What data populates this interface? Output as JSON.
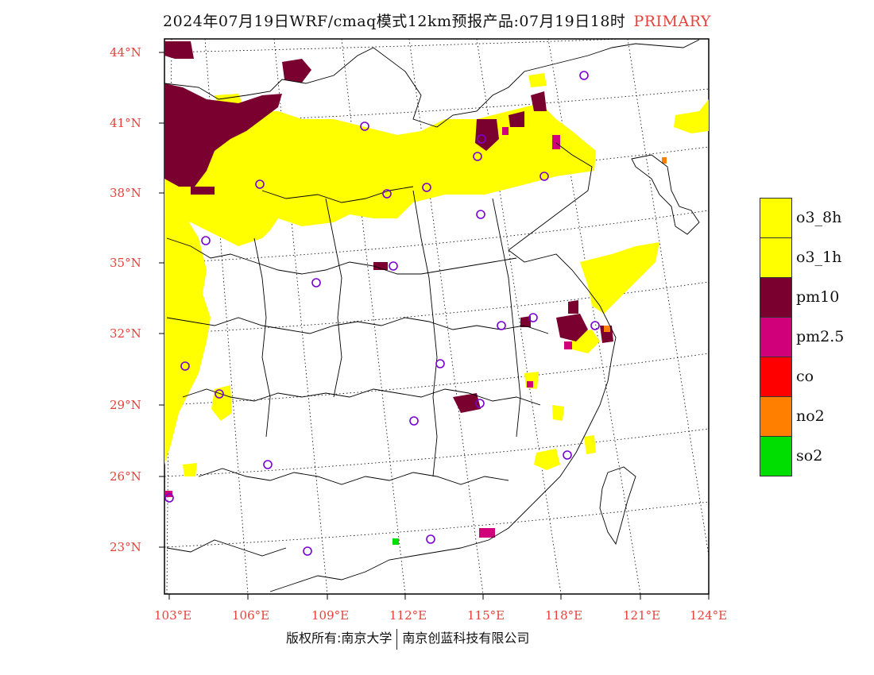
{
  "title": {
    "text": "2024年07月19日WRF/cmaq模式12km预报产品:07月19日18时",
    "primary": "PRIMARY"
  },
  "axes": {
    "lat_labels": [
      "44°N",
      "41°N",
      "38°N",
      "35°N",
      "32°N",
      "29°N",
      "26°N",
      "23°N"
    ],
    "lon_labels": [
      "103°E",
      "106°E",
      "109°E",
      "112°E",
      "115°E",
      "118°E",
      "121°E",
      "124°E"
    ]
  },
  "legend": {
    "items": [
      {
        "label": "o3_8h",
        "color": "#ffff00"
      },
      {
        "label": "o3_1h",
        "color": "#ffff00"
      },
      {
        "label": "pm10",
        "color": "#7a0030"
      },
      {
        "label": "pm2.5",
        "color": "#d0007a"
      },
      {
        "label": "co",
        "color": "#ff0000"
      },
      {
        "label": "no2",
        "color": "#ff8000"
      },
      {
        "label": "so2",
        "color": "#00dd00"
      }
    ]
  },
  "footer": {
    "left": "版权所有:南京大学",
    "right": "南京创蓝科技有限公司"
  },
  "colors": {
    "axis_label": "#e8403a",
    "station_marker": "#7a00d0",
    "o3": "#ffff00",
    "pm10": "#7a0030",
    "pm25": "#d0007a",
    "no2": "#ff8000",
    "so2": "#00dd00"
  }
}
